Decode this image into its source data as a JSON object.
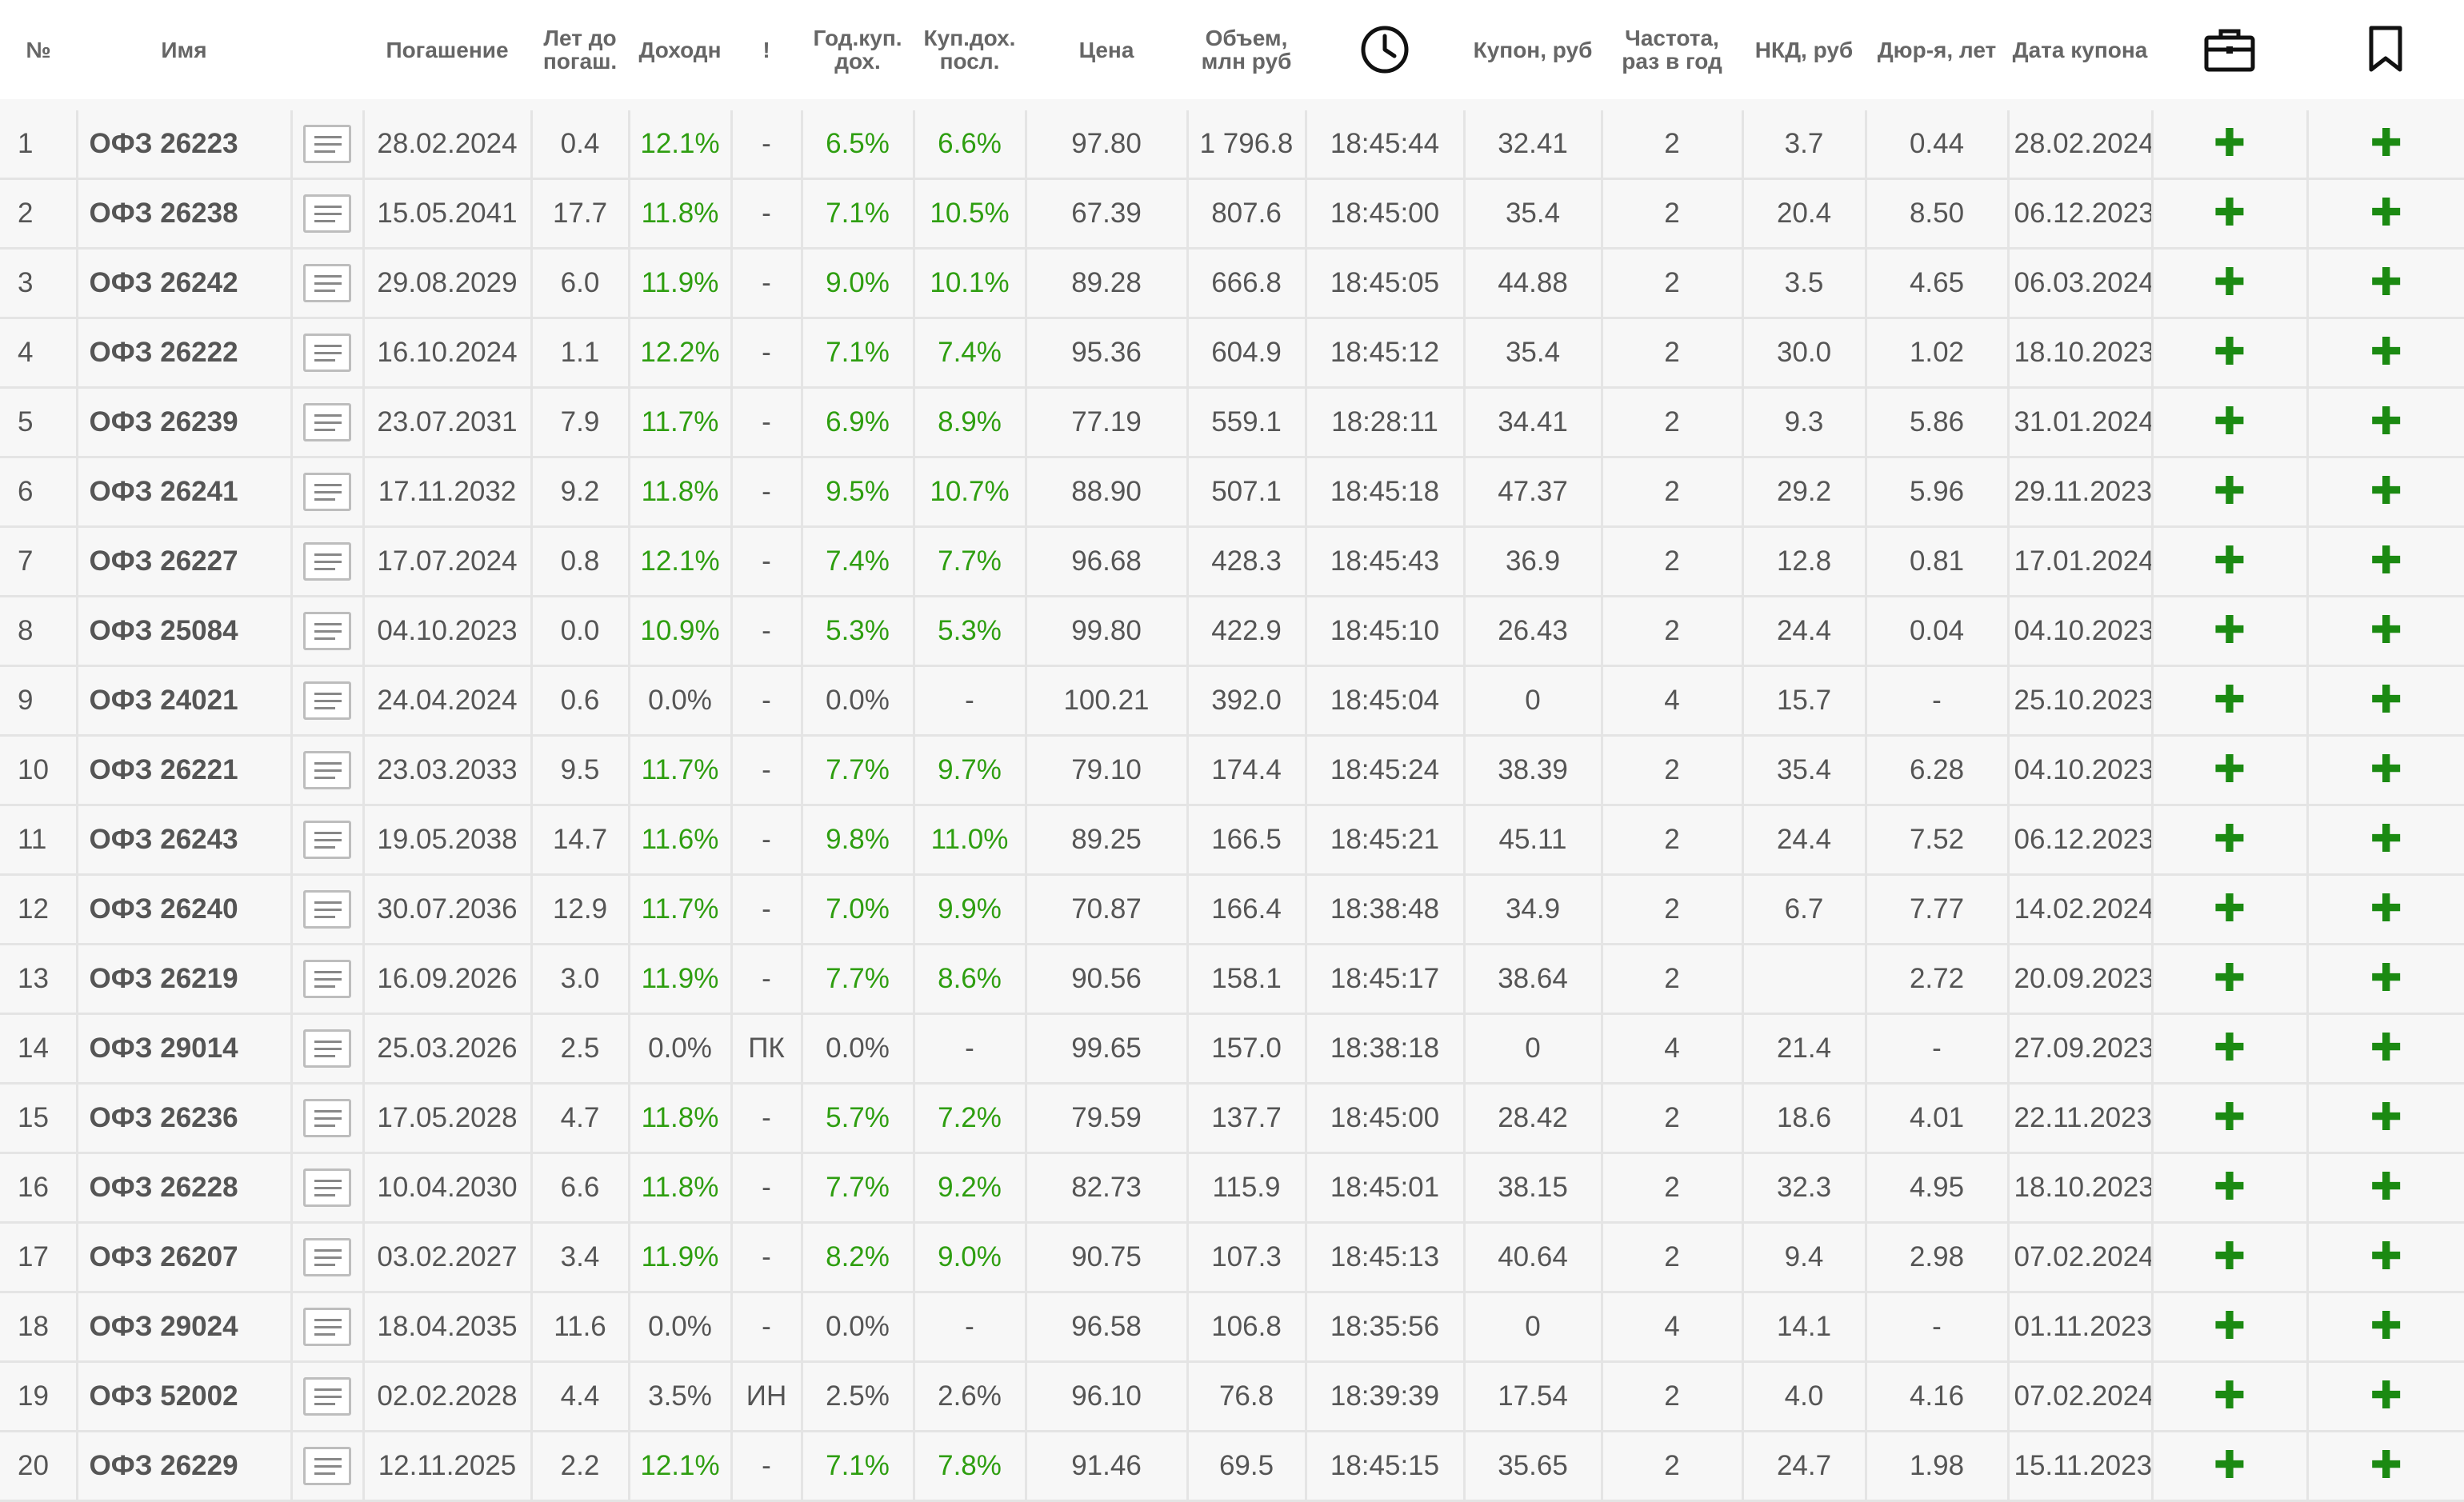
{
  "headers": {
    "num": "№",
    "name": "Имя",
    "maturity": "Погашение",
    "years1": "Лет до",
    "years2": "погаш.",
    "yield": "Доходн",
    "flag": "!",
    "cyield1": "Год.куп.",
    "cyield2": "дох.",
    "lyield1": "Куп.дох.",
    "lyield2": "посл.",
    "price": "Цена",
    "volume1": "Объем,",
    "volume2": "млн руб",
    "time_icon": "clock-icon",
    "coupon": "Купон, руб",
    "freq1": "Частота,",
    "freq2": "раз в год",
    "nkd": "НКД, руб",
    "duration": "Дюр-я, лет",
    "coupon_date": "Дата купона",
    "portfolio_icon": "briefcase-icon",
    "bookmark_icon": "bookmark-icon"
  },
  "colors": {
    "green_text": "#2e9e10",
    "plus": "#1b8a12",
    "row_bg": "#f7f7f7",
    "border": "#e4e4e4"
  },
  "add_symbol": "✚",
  "rows": [
    {
      "num": "1",
      "name": "ОФЗ 26223",
      "maturity": "28.02.2024",
      "years": "0.4",
      "yield": "12.1%",
      "yield_green": true,
      "flag": "-",
      "cyield": "6.5%",
      "cyield_green": true,
      "lyield": "6.6%",
      "lyield_green": true,
      "price": "97.80",
      "volume": "1 796.8",
      "time": "18:45:44",
      "coupon": "32.41",
      "freq": "2",
      "nkd": "3.7",
      "duration": "0.44",
      "coupon_date": "28.02.2024"
    },
    {
      "num": "2",
      "name": "ОФЗ 26238",
      "maturity": "15.05.2041",
      "years": "17.7",
      "yield": "11.8%",
      "yield_green": true,
      "flag": "-",
      "cyield": "7.1%",
      "cyield_green": true,
      "lyield": "10.5%",
      "lyield_green": true,
      "price": "67.39",
      "volume": "807.6",
      "time": "18:45:00",
      "coupon": "35.4",
      "freq": "2",
      "nkd": "20.4",
      "duration": "8.50",
      "coupon_date": "06.12.2023"
    },
    {
      "num": "3",
      "name": "ОФЗ 26242",
      "maturity": "29.08.2029",
      "years": "6.0",
      "yield": "11.9%",
      "yield_green": true,
      "flag": "-",
      "cyield": "9.0%",
      "cyield_green": true,
      "lyield": "10.1%",
      "lyield_green": true,
      "price": "89.28",
      "volume": "666.8",
      "time": "18:45:05",
      "coupon": "44.88",
      "freq": "2",
      "nkd": "3.5",
      "duration": "4.65",
      "coupon_date": "06.03.2024"
    },
    {
      "num": "4",
      "name": "ОФЗ 26222",
      "maturity": "16.10.2024",
      "years": "1.1",
      "yield": "12.2%",
      "yield_green": true,
      "flag": "-",
      "cyield": "7.1%",
      "cyield_green": true,
      "lyield": "7.4%",
      "lyield_green": true,
      "price": "95.36",
      "volume": "604.9",
      "time": "18:45:12",
      "coupon": "35.4",
      "freq": "2",
      "nkd": "30.0",
      "duration": "1.02",
      "coupon_date": "18.10.2023"
    },
    {
      "num": "5",
      "name": "ОФЗ 26239",
      "maturity": "23.07.2031",
      "years": "7.9",
      "yield": "11.7%",
      "yield_green": true,
      "flag": "-",
      "cyield": "6.9%",
      "cyield_green": true,
      "lyield": "8.9%",
      "lyield_green": true,
      "price": "77.19",
      "volume": "559.1",
      "time": "18:28:11",
      "coupon": "34.41",
      "freq": "2",
      "nkd": "9.3",
      "duration": "5.86",
      "coupon_date": "31.01.2024"
    },
    {
      "num": "6",
      "name": "ОФЗ 26241",
      "maturity": "17.11.2032",
      "years": "9.2",
      "yield": "11.8%",
      "yield_green": true,
      "flag": "-",
      "cyield": "9.5%",
      "cyield_green": true,
      "lyield": "10.7%",
      "lyield_green": true,
      "price": "88.90",
      "volume": "507.1",
      "time": "18:45:18",
      "coupon": "47.37",
      "freq": "2",
      "nkd": "29.2",
      "duration": "5.96",
      "coupon_date": "29.11.2023"
    },
    {
      "num": "7",
      "name": "ОФЗ 26227",
      "maturity": "17.07.2024",
      "years": "0.8",
      "yield": "12.1%",
      "yield_green": true,
      "flag": "-",
      "cyield": "7.4%",
      "cyield_green": true,
      "lyield": "7.7%",
      "lyield_green": true,
      "price": "96.68",
      "volume": "428.3",
      "time": "18:45:43",
      "coupon": "36.9",
      "freq": "2",
      "nkd": "12.8",
      "duration": "0.81",
      "coupon_date": "17.01.2024"
    },
    {
      "num": "8",
      "name": "ОФЗ 25084",
      "maturity": "04.10.2023",
      "years": "0.0",
      "yield": "10.9%",
      "yield_green": true,
      "flag": "-",
      "cyield": "5.3%",
      "cyield_green": true,
      "lyield": "5.3%",
      "lyield_green": true,
      "price": "99.80",
      "volume": "422.9",
      "time": "18:45:10",
      "coupon": "26.43",
      "freq": "2",
      "nkd": "24.4",
      "duration": "0.04",
      "coupon_date": "04.10.2023"
    },
    {
      "num": "9",
      "name": "ОФЗ 24021",
      "maturity": "24.04.2024",
      "years": "0.6",
      "yield": "0.0%",
      "yield_green": false,
      "flag": "-",
      "cyield": "0.0%",
      "cyield_green": false,
      "lyield": "-",
      "lyield_green": false,
      "price": "100.21",
      "volume": "392.0",
      "time": "18:45:04",
      "coupon": "0",
      "freq": "4",
      "nkd": "15.7",
      "duration": "-",
      "coupon_date": "25.10.2023"
    },
    {
      "num": "10",
      "name": "ОФЗ 26221",
      "maturity": "23.03.2033",
      "years": "9.5",
      "yield": "11.7%",
      "yield_green": true,
      "flag": "-",
      "cyield": "7.7%",
      "cyield_green": true,
      "lyield": "9.7%",
      "lyield_green": true,
      "price": "79.10",
      "volume": "174.4",
      "time": "18:45:24",
      "coupon": "38.39",
      "freq": "2",
      "nkd": "35.4",
      "duration": "6.28",
      "coupon_date": "04.10.2023"
    },
    {
      "num": "11",
      "name": "ОФЗ 26243",
      "maturity": "19.05.2038",
      "years": "14.7",
      "yield": "11.6%",
      "yield_green": true,
      "flag": "-",
      "cyield": "9.8%",
      "cyield_green": true,
      "lyield": "11.0%",
      "lyield_green": true,
      "price": "89.25",
      "volume": "166.5",
      "time": "18:45:21",
      "coupon": "45.11",
      "freq": "2",
      "nkd": "24.4",
      "duration": "7.52",
      "coupon_date": "06.12.2023"
    },
    {
      "num": "12",
      "name": "ОФЗ 26240",
      "maturity": "30.07.2036",
      "years": "12.9",
      "yield": "11.7%",
      "yield_green": true,
      "flag": "-",
      "cyield": "7.0%",
      "cyield_green": true,
      "lyield": "9.9%",
      "lyield_green": true,
      "price": "70.87",
      "volume": "166.4",
      "time": "18:38:48",
      "coupon": "34.9",
      "freq": "2",
      "nkd": "6.7",
      "duration": "7.77",
      "coupon_date": "14.02.2024"
    },
    {
      "num": "13",
      "name": "ОФЗ 26219",
      "maturity": "16.09.2026",
      "years": "3.0",
      "yield": "11.9%",
      "yield_green": true,
      "flag": "-",
      "cyield": "7.7%",
      "cyield_green": true,
      "lyield": "8.6%",
      "lyield_green": true,
      "price": "90.56",
      "volume": "158.1",
      "time": "18:45:17",
      "coupon": "38.64",
      "freq": "2",
      "nkd": "",
      "duration": "2.72",
      "coupon_date": "20.09.2023"
    },
    {
      "num": "14",
      "name": "ОФЗ 29014",
      "maturity": "25.03.2026",
      "years": "2.5",
      "yield": "0.0%",
      "yield_green": false,
      "flag": "ПК",
      "cyield": "0.0%",
      "cyield_green": false,
      "lyield": "-",
      "lyield_green": false,
      "price": "99.65",
      "volume": "157.0",
      "time": "18:38:18",
      "coupon": "0",
      "freq": "4",
      "nkd": "21.4",
      "duration": "-",
      "coupon_date": "27.09.2023"
    },
    {
      "num": "15",
      "name": "ОФЗ 26236",
      "maturity": "17.05.2028",
      "years": "4.7",
      "yield": "11.8%",
      "yield_green": true,
      "flag": "-",
      "cyield": "5.7%",
      "cyield_green": true,
      "lyield": "7.2%",
      "lyield_green": true,
      "price": "79.59",
      "volume": "137.7",
      "time": "18:45:00",
      "coupon": "28.42",
      "freq": "2",
      "nkd": "18.6",
      "duration": "4.01",
      "coupon_date": "22.11.2023"
    },
    {
      "num": "16",
      "name": "ОФЗ 26228",
      "maturity": "10.04.2030",
      "years": "6.6",
      "yield": "11.8%",
      "yield_green": true,
      "flag": "-",
      "cyield": "7.7%",
      "cyield_green": true,
      "lyield": "9.2%",
      "lyield_green": true,
      "price": "82.73",
      "volume": "115.9",
      "time": "18:45:01",
      "coupon": "38.15",
      "freq": "2",
      "nkd": "32.3",
      "duration": "4.95",
      "coupon_date": "18.10.2023"
    },
    {
      "num": "17",
      "name": "ОФЗ 26207",
      "maturity": "03.02.2027",
      "years": "3.4",
      "yield": "11.9%",
      "yield_green": true,
      "flag": "-",
      "cyield": "8.2%",
      "cyield_green": true,
      "lyield": "9.0%",
      "lyield_green": true,
      "price": "90.75",
      "volume": "107.3",
      "time": "18:45:13",
      "coupon": "40.64",
      "freq": "2",
      "nkd": "9.4",
      "duration": "2.98",
      "coupon_date": "07.02.2024"
    },
    {
      "num": "18",
      "name": "ОФЗ 29024",
      "maturity": "18.04.2035",
      "years": "11.6",
      "yield": "0.0%",
      "yield_green": false,
      "flag": "-",
      "cyield": "0.0%",
      "cyield_green": false,
      "lyield": "-",
      "lyield_green": false,
      "price": "96.58",
      "volume": "106.8",
      "time": "18:35:56",
      "coupon": "0",
      "freq": "4",
      "nkd": "14.1",
      "duration": "-",
      "coupon_date": "01.11.2023"
    },
    {
      "num": "19",
      "name": "ОФЗ 52002",
      "maturity": "02.02.2028",
      "years": "4.4",
      "yield": "3.5%",
      "yield_green": false,
      "flag": "ИН",
      "cyield": "2.5%",
      "cyield_green": false,
      "lyield": "2.6%",
      "lyield_green": false,
      "price": "96.10",
      "volume": "76.8",
      "time": "18:39:39",
      "coupon": "17.54",
      "freq": "2",
      "nkd": "4.0",
      "duration": "4.16",
      "coupon_date": "07.02.2024"
    },
    {
      "num": "20",
      "name": "ОФЗ 26229",
      "maturity": "12.11.2025",
      "years": "2.2",
      "yield": "12.1%",
      "yield_green": true,
      "flag": "-",
      "cyield": "7.1%",
      "cyield_green": true,
      "lyield": "7.8%",
      "lyield_green": true,
      "price": "91.46",
      "volume": "69.5",
      "time": "18:45:15",
      "coupon": "35.65",
      "freq": "2",
      "nkd": "24.7",
      "duration": "1.98",
      "coupon_date": "15.11.2023"
    }
  ]
}
